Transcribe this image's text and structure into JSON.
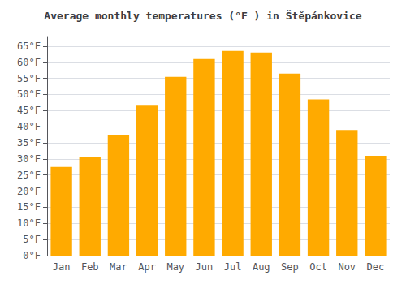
{
  "chart_data": {
    "type": "bar",
    "title": "Average monthly temperatures (°F ) in Štěpánkovice",
    "categories": [
      "Jan",
      "Feb",
      "Mar",
      "Apr",
      "May",
      "Jun",
      "Jul",
      "Aug",
      "Sep",
      "Oct",
      "Nov",
      "Dec"
    ],
    "values": [
      27.5,
      30.5,
      37.5,
      46.5,
      55.5,
      61.0,
      63.5,
      63.0,
      56.5,
      48.5,
      39.0,
      31.0
    ],
    "color": "#FFAA00",
    "ylim": [
      0,
      68
    ],
    "yticks": [
      {
        "value": 0,
        "label": "0°F"
      },
      {
        "value": 5,
        "label": "5°F"
      },
      {
        "value": 10,
        "label": "10°F"
      },
      {
        "value": 15,
        "label": "15°F"
      },
      {
        "value": 20,
        "label": "20°F"
      },
      {
        "value": 25,
        "label": "25°F"
      },
      {
        "value": 30,
        "label": "30°F"
      },
      {
        "value": 35,
        "label": "35°F"
      },
      {
        "value": 40,
        "label": "40°F"
      },
      {
        "value": 45,
        "label": "45°F"
      },
      {
        "value": 50,
        "label": "50°F"
      },
      {
        "value": 55,
        "label": "55°F"
      },
      {
        "value": 60,
        "label": "60°F"
      },
      {
        "value": 65,
        "label": "65°F"
      }
    ],
    "grid": true
  }
}
